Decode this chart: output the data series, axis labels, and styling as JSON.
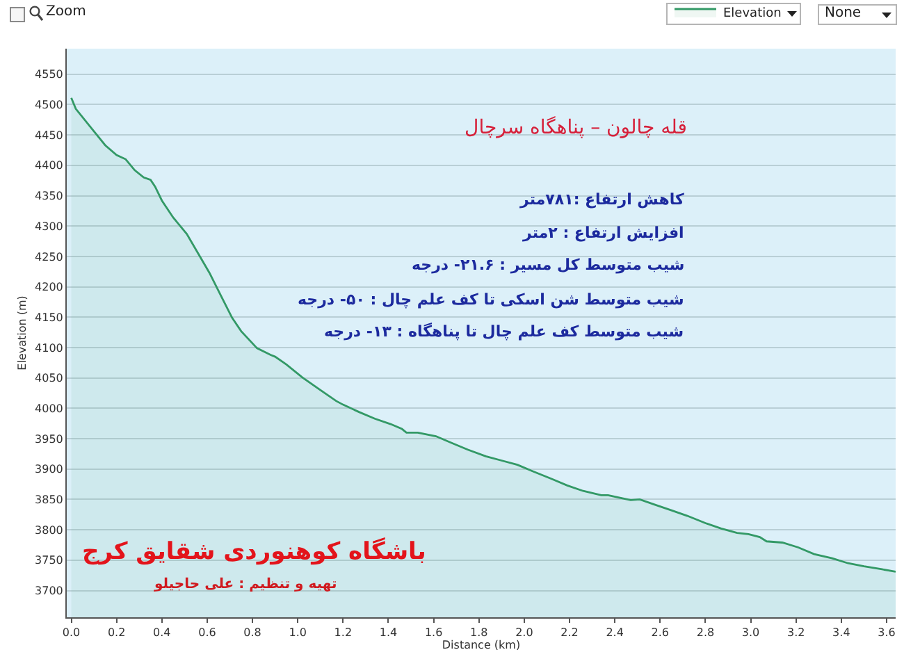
{
  "chart_data": {
    "type": "area",
    "title": "قله چالون – پناهگاه سرچال",
    "xlabel": "Distance (km)",
    "ylabel": "Elevation (m)",
    "x": [
      0,
      0.02,
      0.1,
      0.15,
      0.2,
      0.24,
      0.28,
      0.32,
      0.35,
      0.37,
      0.4,
      0.45,
      0.51,
      0.56,
      0.61,
      0.66,
      0.71,
      0.75,
      0.82,
      0.88,
      0.9,
      0.95,
      1.02,
      1.1,
      1.17,
      1.2,
      1.27,
      1.34,
      1.41,
      1.46,
      1.48,
      1.53,
      1.61,
      1.68,
      1.75,
      1.83,
      1.9,
      1.97,
      2.04,
      2.12,
      2.19,
      2.26,
      2.34,
      2.37,
      2.43,
      2.47,
      2.51,
      2.58,
      2.65,
      2.72,
      2.8,
      2.87,
      2.94,
      2.99,
      3.04,
      3.07,
      3.14,
      3.21,
      3.28,
      3.36,
      3.43,
      3.5,
      3.58,
      3.64
    ],
    "series": [
      {
        "name": "Elevation",
        "color": "#339966",
        "values": [
          4511,
          4493,
          4456,
          4433,
          4417,
          4410,
          4392,
          4380,
          4376,
          4365,
          4342,
          4314,
          4287,
          4255,
          4223,
          4186,
          4149,
          4127,
          4099,
          4088,
          4085,
          4072,
          4051,
          4030,
          4012,
          4006,
          3994,
          3983,
          3974,
          3966,
          3960,
          3960,
          3954,
          3943,
          3932,
          3921,
          3914,
          3907,
          3896,
          3884,
          3873,
          3864,
          3857,
          3857,
          3852,
          3849,
          3850,
          3841,
          3832,
          3823,
          3811,
          3802,
          3795,
          3793,
          3788,
          3781,
          3779,
          3771,
          3760,
          3753,
          3745,
          3740,
          3735,
          3731
        ]
      }
    ],
    "xlim": [
      -0.02,
      3.64
    ],
    "ylim": [
      3656,
      4592
    ],
    "xticks": [
      {
        "value": 0,
        "label": "0.0"
      },
      0.2,
      0.4,
      0.6,
      0.8,
      {
        "value": 1,
        "label": "1.0"
      },
      1.2,
      1.4,
      1.6,
      1.8,
      {
        "value": 2,
        "label": "2.0"
      },
      2.2,
      2.4,
      2.6,
      2.8,
      {
        "value": 3,
        "label": "3.0"
      },
      3.2,
      3.4,
      3.6
    ],
    "yticks": [
      3700,
      3750,
      3800,
      3850,
      3900,
      3950,
      4000,
      4050,
      4100,
      4150,
      4200,
      4250,
      4300,
      4350,
      4400,
      4450,
      4500,
      4550
    ],
    "grid": "y",
    "legend": "top right",
    "annotations": [
      "Zoom",
      "None",
      "کاهش ارتفاع :۷۸۱متر",
      "افزایش ارتفاع : ۲متر",
      "شیب متوسط کل مسیر : ۲۱.۶- درجه",
      "شیب متوسط شن اسکی تا کف علم چال : ۵۰- درجه",
      "شیب متوسط کف علم چال تا پناهگاه : ۱۳- درجه",
      "باشگاه کوهنوردی شقایق کرج",
      "تهیه و تنظیم : علی حاجیلو"
    ]
  }
}
